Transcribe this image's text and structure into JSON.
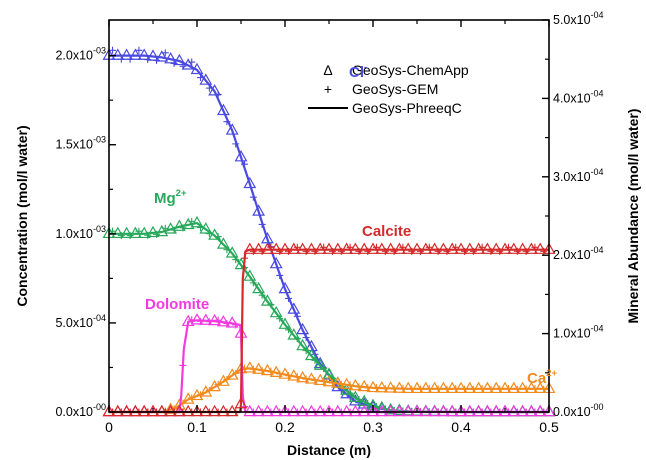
{
  "chart_data": {
    "type": "line",
    "x_axis": {
      "label": "Distance (m)",
      "range": [
        0,
        0.5
      ],
      "ticks": [
        0,
        0.1,
        0.2,
        0.3,
        0.4,
        0.5
      ],
      "tick_labels": [
        "0",
        "0.1",
        "0.2",
        "0.3",
        "0.4",
        "0.5"
      ]
    },
    "y_left": {
      "label": "Concentration (mol/l water)",
      "range": [
        0,
        0.0022
      ],
      "ticks": [
        0,
        0.0005,
        0.001,
        0.0015,
        0.002
      ],
      "tick_labels": [
        {
          "mant": "0.0x10",
          "exp": "-00"
        },
        {
          "mant": "5.0x10",
          "exp": "-04"
        },
        {
          "mant": "1.0x10",
          "exp": "-03"
        },
        {
          "mant": "1.5x10",
          "exp": "-03"
        },
        {
          "mant": "2.0x10",
          "exp": "-03"
        }
      ]
    },
    "y_right": {
      "label": "Mineral Abundance (mol/l water)",
      "range": [
        0,
        0.0005
      ],
      "ticks": [
        0,
        0.0001,
        0.0002,
        0.0003,
        0.0004,
        0.0005
      ],
      "tick_labels": [
        {
          "mant": "0.0x10",
          "exp": "-00"
        },
        {
          "mant": "1.0x10",
          "exp": "-04"
        },
        {
          "mant": "2.0x10",
          "exp": "-04"
        },
        {
          "mant": "3.0x10",
          "exp": "-04"
        },
        {
          "mant": "4.0x10",
          "exp": "-04"
        },
        {
          "mant": "5.0x10",
          "exp": "-04"
        }
      ]
    },
    "legend": {
      "placement": "top-right",
      "entries": [
        {
          "symbol": "Δ",
          "label": "GeoSys-ChemApp"
        },
        {
          "symbol": "+",
          "label": "GeoSys-GEM"
        },
        {
          "symbol": "line",
          "label": "GeoSys-PhreeqC"
        }
      ]
    },
    "series": [
      {
        "name": "Cl",
        "label": {
          "base": "Cl",
          "sup": "-"
        },
        "axis": "left",
        "color": "#4a4ae0",
        "x": [
          0,
          0.02,
          0.04,
          0.06,
          0.08,
          0.1,
          0.12,
          0.14,
          0.16,
          0.18,
          0.2,
          0.22,
          0.24,
          0.26,
          0.28,
          0.3,
          0.32,
          0.34,
          0.36,
          0.4,
          0.5
        ],
        "y": [
          0.002,
          0.002,
          0.002,
          0.00199,
          0.00197,
          0.00192,
          0.0018,
          0.00158,
          0.00128,
          0.00097,
          0.00069,
          0.00046,
          0.00027,
          0.00014,
          6e-05,
          2.5e-05,
          1e-05,
          4e-06,
          1e-06,
          0,
          0
        ]
      },
      {
        "name": "Mg",
        "label": {
          "base": "Mg",
          "sup": "2+"
        },
        "axis": "left",
        "color": "#27a85a",
        "x": [
          0,
          0.02,
          0.04,
          0.06,
          0.08,
          0.1,
          0.12,
          0.14,
          0.16,
          0.18,
          0.2,
          0.22,
          0.24,
          0.26,
          0.28,
          0.3,
          0.32,
          0.34,
          0.4,
          0.5
        ],
        "y": [
          0.001,
          0.001,
          0.001,
          0.00101,
          0.00104,
          0.00106,
          0.00099,
          0.00089,
          0.00076,
          0.00062,
          0.00049,
          0.00037,
          0.00026,
          0.00016,
          8e-05,
          3.5e-05,
          1e-05,
          3e-06,
          0,
          0
        ]
      },
      {
        "name": "Ca",
        "label": {
          "base": "Ca",
          "sup": "2+"
        },
        "axis": "left",
        "color": "#f28a1e",
        "x": [
          0,
          0.06,
          0.075,
          0.09,
          0.11,
          0.13,
          0.15,
          0.16,
          0.18,
          0.2,
          0.22,
          0.24,
          0.26,
          0.28,
          0.3,
          0.34,
          0.4,
          0.5
        ],
        "y": [
          0,
          0,
          2e-05,
          7e-05,
          0.00011,
          0.00017,
          0.00024,
          0.000245,
          0.00023,
          0.00021,
          0.00019,
          0.000175,
          0.00016,
          0.000145,
          0.000135,
          0.00013,
          0.00013,
          0.00013
        ]
      },
      {
        "name": "Dolomite",
        "label": {
          "base": "Dolomite",
          "sup": ""
        },
        "axis": "right",
        "color": "#f23ae0",
        "x": [
          0,
          0.08,
          0.082,
          0.085,
          0.09,
          0.1,
          0.12,
          0.14,
          0.149,
          0.15,
          0.152,
          0.155,
          0.5
        ],
        "y": [
          0,
          0,
          2e-05,
          8e-05,
          0.000115,
          0.000117,
          0.000116,
          0.000113,
          0.000111,
          0.0001,
          2e-05,
          0,
          0
        ]
      },
      {
        "name": "Calcite",
        "label": {
          "base": "Calcite",
          "sup": ""
        },
        "axis": "right",
        "color": "#d42a2a",
        "x": [
          0,
          0.149,
          0.15,
          0.152,
          0.155,
          0.16,
          0.2,
          0.3,
          0.4,
          0.5
        ],
        "y": [
          0,
          0,
          1e-05,
          0.00017,
          0.000205,
          0.000207,
          0.000207,
          0.000207,
          0.000207,
          0.000207
        ]
      }
    ]
  }
}
